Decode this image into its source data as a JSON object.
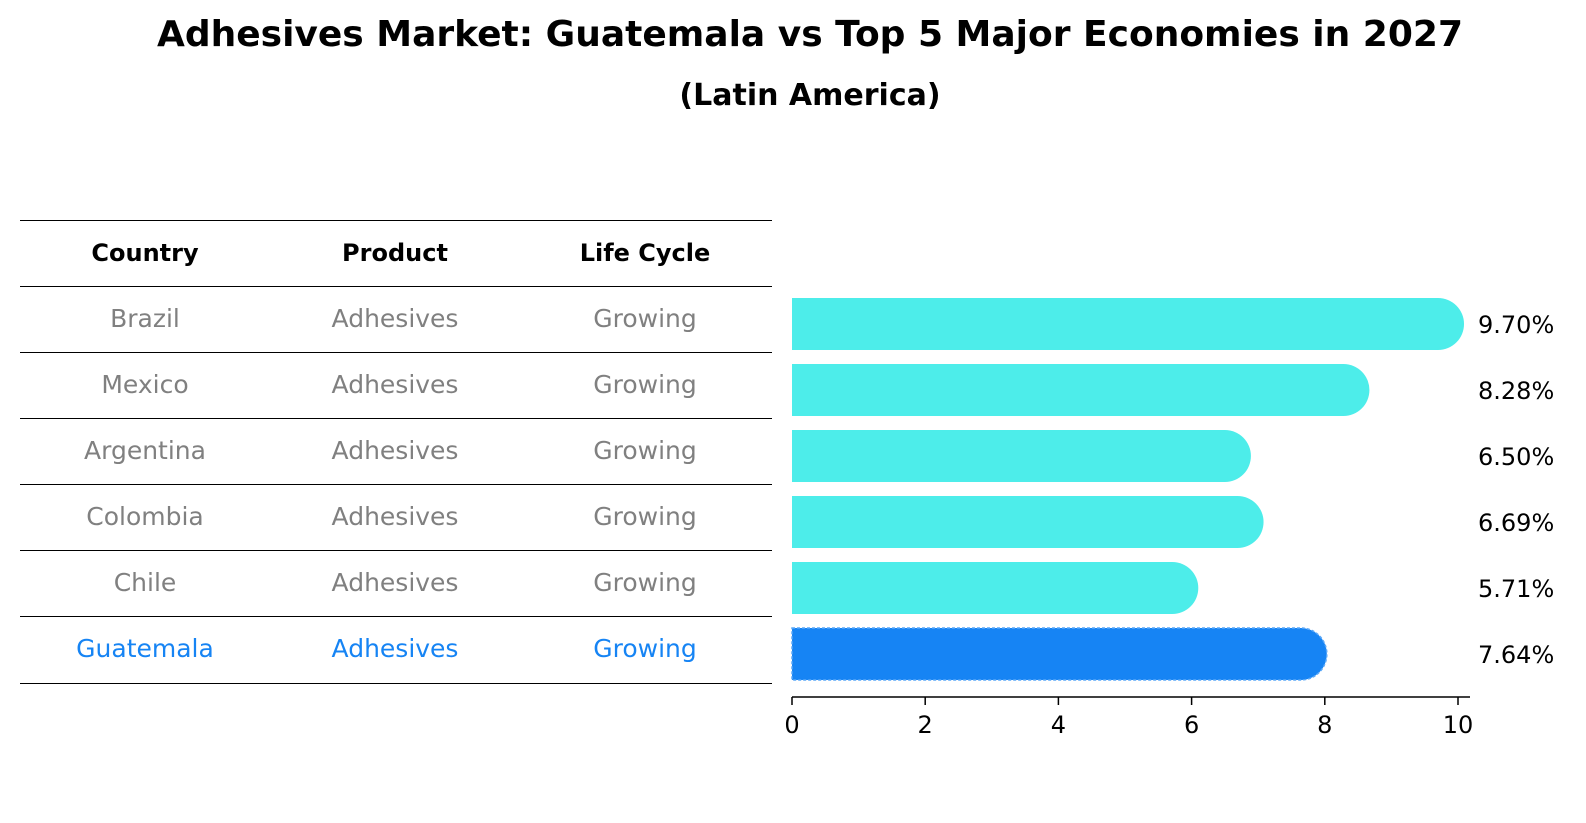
{
  "title": "Adhesives Market: Guatemala vs Top 5 Major Economies in 2027",
  "subtitle": "(Latin America)",
  "table": {
    "headers": [
      "Country",
      "Product",
      "Life Cycle"
    ],
    "rows": [
      {
        "country": "Brazil",
        "product": "Adhesives",
        "life_cycle": "Growing"
      },
      {
        "country": "Mexico",
        "product": "Adhesives",
        "life_cycle": "Growing"
      },
      {
        "country": "Argentina",
        "product": "Adhesives",
        "life_cycle": "Growing"
      },
      {
        "country": "Colombia",
        "product": "Adhesives",
        "life_cycle": "Growing"
      },
      {
        "country": "Chile",
        "product": "Adhesives",
        "life_cycle": "Growing"
      },
      {
        "country": "Guatemala",
        "product": "Adhesives",
        "life_cycle": "Growing"
      }
    ]
  },
  "colors": {
    "default_bar": "#4dedea",
    "highlight_bar": "#1684f4",
    "default_text": "#808080",
    "highlight_text": "#1684f4"
  },
  "chart_data": {
    "type": "bar",
    "orientation": "horizontal",
    "categories": [
      "Brazil",
      "Mexico",
      "Argentina",
      "Colombia",
      "Chile",
      "Guatemala"
    ],
    "values": [
      9.7,
      8.28,
      6.5,
      6.69,
      5.71,
      7.64
    ],
    "value_labels": [
      "9.70%",
      "8.28%",
      "6.50%",
      "6.69%",
      "5.71%",
      "7.64%"
    ],
    "highlight": "Guatemala",
    "xlim": [
      0,
      10
    ],
    "xticks": [
      0,
      2,
      4,
      6,
      8,
      10
    ],
    "xtick_labels": [
      "0",
      "2",
      "4",
      "6",
      "8",
      "10"
    ],
    "title": "Adhesives Market: Guatemala vs Top 5 Major Economies in 2027",
    "subtitle": "(Latin America)",
    "xlabel": "",
    "ylabel": ""
  }
}
